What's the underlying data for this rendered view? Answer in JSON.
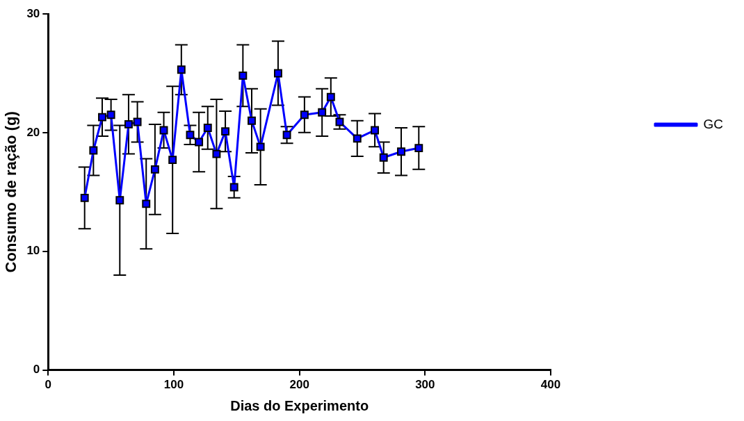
{
  "chart_data": {
    "type": "line",
    "xlabel": "Dias do Experimento",
    "ylabel": "Consumo de ração (g)",
    "x": [
      29,
      36,
      43,
      50,
      57,
      64,
      71,
      78,
      85,
      92,
      99,
      106,
      113,
      120,
      127,
      134,
      141,
      148,
      155,
      162,
      169,
      183,
      190,
      204,
      218,
      225,
      232,
      246,
      260,
      267,
      281,
      295
    ],
    "series": [
      {
        "name": "GC",
        "color": "#0000ff",
        "values": [
          14.5,
          18.5,
          21.3,
          21.5,
          14.3,
          20.7,
          20.9,
          14.0,
          16.9,
          20.2,
          17.7,
          25.3,
          19.8,
          19.2,
          20.4,
          18.2,
          20.1,
          15.4,
          24.8,
          21.0,
          18.8,
          25.0,
          19.8,
          21.5,
          21.7,
          23.0,
          20.9,
          19.5,
          20.2,
          17.9,
          18.4,
          18.7
        ],
        "errors": [
          2.6,
          2.1,
          1.6,
          1.3,
          6.3,
          2.5,
          1.7,
          3.8,
          3.8,
          1.5,
          6.2,
          2.1,
          0.8,
          2.5,
          1.8,
          4.6,
          1.7,
          0.9,
          2.6,
          2.7,
          3.2,
          2.7,
          0.7,
          1.5,
          2.0,
          1.6,
          0.6,
          1.5,
          1.4,
          1.3,
          2.0,
          1.8
        ]
      }
    ],
    "xlim": [
      0,
      400
    ],
    "xticks": [
      0,
      100,
      200,
      300,
      400
    ],
    "ylim": [
      0,
      30
    ],
    "yticks": [
      0,
      10,
      20,
      30
    ],
    "grid": false,
    "legend": "right",
    "marker": "square",
    "line_style": "solid"
  }
}
